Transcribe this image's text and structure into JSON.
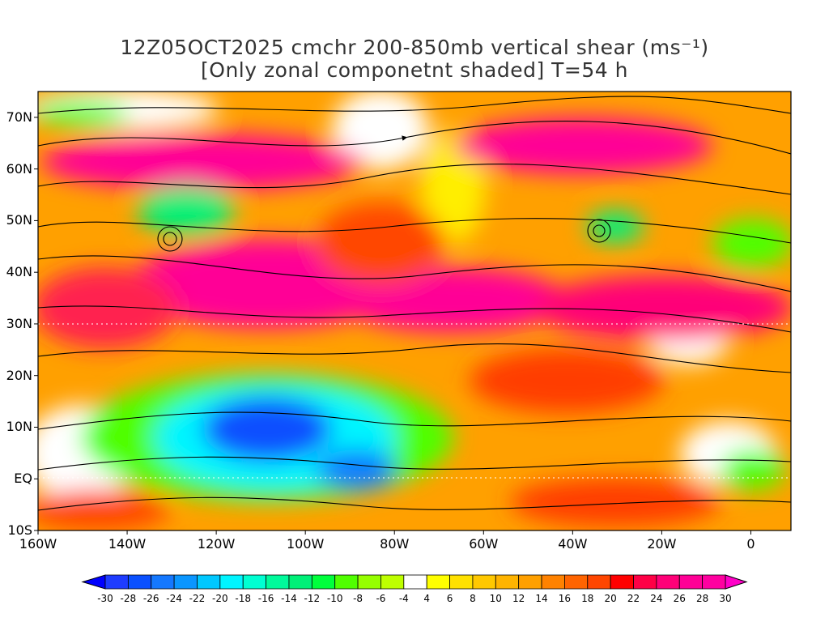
{
  "title": {
    "line1": "12Z05OCT2025 cmchr 200-850mb vertical shear (ms⁻¹)",
    "line2": "[Only zonal componetnt shaded] T=54 h"
  },
  "map": {
    "lon_range": [
      -160,
      9
    ],
    "lat_range": [
      -10,
      75
    ],
    "y_axis_labels": [
      {
        "lat": 70,
        "text": "70N"
      },
      {
        "lat": 60,
        "text": "60N"
      },
      {
        "lat": 50,
        "text": "50N"
      },
      {
        "lat": 40,
        "text": "40N"
      },
      {
        "lat": 30,
        "text": "30N"
      },
      {
        "lat": 20,
        "text": "20N"
      },
      {
        "lat": 10,
        "text": "10N"
      },
      {
        "lat": 0,
        "text": "EQ"
      },
      {
        "lat": -10,
        "text": "10S"
      }
    ],
    "x_axis_labels": [
      {
        "lon": -160,
        "text": "160W"
      },
      {
        "lon": -140,
        "text": "140W"
      },
      {
        "lon": -120,
        "text": "120W"
      },
      {
        "lon": -100,
        "text": "100W"
      },
      {
        "lon": -80,
        "text": "80W"
      },
      {
        "lon": -60,
        "text": "60W"
      },
      {
        "lon": -40,
        "text": "40W"
      },
      {
        "lon": -20,
        "text": "20W"
      },
      {
        "lon": 0,
        "text": "0"
      }
    ]
  },
  "colorbar": {
    "labels": [
      "-30",
      "-28",
      "-26",
      "-24",
      "-22",
      "-20",
      "-18",
      "-16",
      "-14",
      "-12",
      "-10",
      "-8",
      "-6",
      "-4",
      "4",
      "6",
      "8",
      "10",
      "12",
      "14",
      "16",
      "18",
      "20",
      "22",
      "24",
      "26",
      "28",
      "30"
    ],
    "colors": [
      "#1e3cff",
      "#0a50ff",
      "#1478ff",
      "#0a96ff",
      "#00c8ff",
      "#00f5ff",
      "#00ffd2",
      "#00fa9b",
      "#00f078",
      "#00ff3c",
      "#50ff00",
      "#96ff00",
      "#beff00",
      "#ffffff",
      "#ffff00",
      "#ffe100",
      "#ffc800",
      "#ffb400",
      "#ffa000",
      "#ff8200",
      "#ff6400",
      "#ff4600",
      "#ff0000",
      "#ff0046",
      "#ff0078",
      "#ff0096",
      "#ff00a0"
    ],
    "under_color": "#0000ff",
    "over_color": "#ff00c8"
  }
}
